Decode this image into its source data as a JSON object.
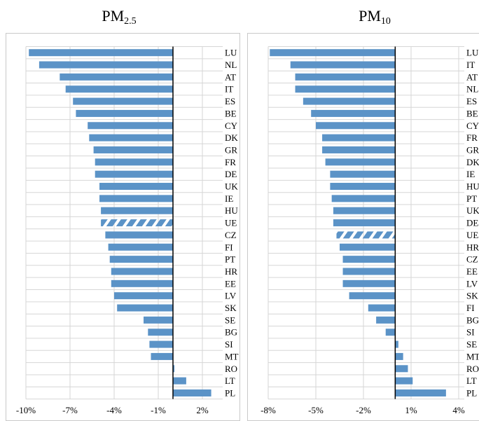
{
  "chart_data": [
    {
      "type": "bar",
      "orientation": "horizontal",
      "title_main": "PM",
      "title_sub": "2.5",
      "xlim": [
        -10,
        3
      ],
      "xticks": [
        -10,
        -7,
        -4,
        -1,
        2
      ],
      "tick_labels": [
        "-10%",
        "-7%",
        "-4%",
        "-1%",
        "2%"
      ],
      "categories": [
        "LU",
        "NL",
        "AT",
        "IT",
        "ES",
        "BE",
        "CY",
        "DK",
        "GR",
        "FR",
        "DE",
        "UK",
        "IE",
        "HU",
        "UE",
        "CZ",
        "FI",
        "PT",
        "HR",
        "EE",
        "LV",
        "SK",
        "SE",
        "BG",
        "SI",
        "MT",
        "RO",
        "LT",
        "PL"
      ],
      "values": [
        -9.8,
        -9.1,
        -7.7,
        -7.3,
        -6.8,
        -6.6,
        -5.8,
        -5.7,
        -5.4,
        -5.3,
        -5.3,
        -5.0,
        -5.0,
        -4.9,
        -4.9,
        -4.6,
        -4.4,
        -4.3,
        -4.2,
        -4.2,
        -4.0,
        -3.8,
        -2.0,
        -1.7,
        -1.6,
        -1.5,
        0.1,
        0.9,
        2.6
      ],
      "hatched": [
        "UE"
      ],
      "grid": "vertical",
      "color": "#5b93c7"
    },
    {
      "type": "bar",
      "orientation": "horizontal",
      "title_main": "PM",
      "title_sub": "10",
      "xlim": [
        -8,
        4
      ],
      "xticks": [
        -8,
        -5,
        -2,
        1,
        4
      ],
      "tick_labels": [
        "-8%",
        "-5%",
        "-2%",
        "1%",
        "4%"
      ],
      "categories": [
        "LU",
        "IT",
        "AT",
        "NL",
        "ES",
        "BE",
        "CY",
        "FR",
        "GR",
        "DK",
        "IE",
        "HU",
        "PT",
        "UK",
        "DE",
        "UE",
        "HR",
        "CZ",
        "EE",
        "LV",
        "SK",
        "FI",
        "BG",
        "SI",
        "SE",
        "MT",
        "RO",
        "LT",
        "PL"
      ],
      "values": [
        -7.9,
        -6.6,
        -6.3,
        -6.3,
        -5.8,
        -5.3,
        -5.0,
        -4.6,
        -4.6,
        -4.4,
        -4.1,
        -4.1,
        -4.0,
        -3.9,
        -3.9,
        -3.7,
        -3.5,
        -3.3,
        -3.3,
        -3.3,
        -2.9,
        -1.7,
        -1.2,
        -0.6,
        0.2,
        0.5,
        0.8,
        1.1,
        3.2
      ],
      "hatched": [
        "UE"
      ],
      "grid": "vertical",
      "color": "#5b93c7"
    }
  ]
}
